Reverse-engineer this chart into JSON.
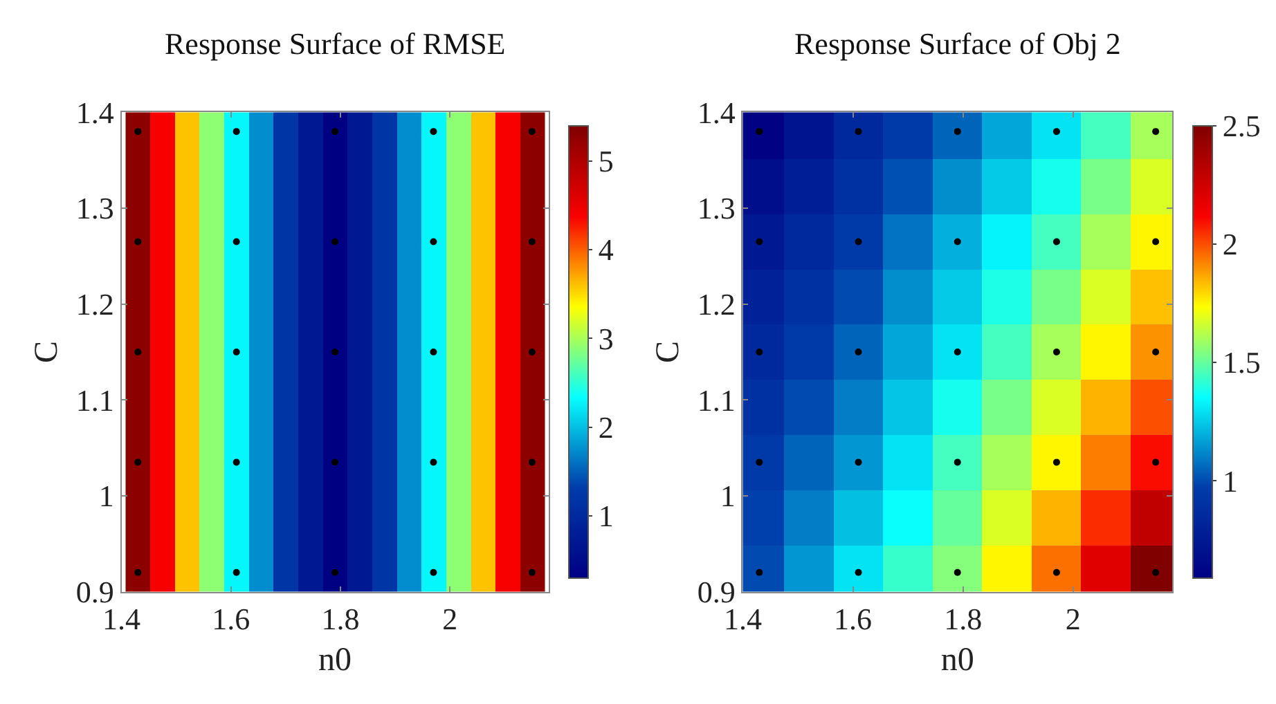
{
  "chart_data": [
    {
      "type": "heatmap",
      "title": "Response Surface of RMSE",
      "xlabel": "n0",
      "ylabel": "C",
      "clabel": null,
      "x": [
        1.43,
        1.475,
        1.52,
        1.565,
        1.61,
        1.655,
        1.7,
        1.745,
        1.79,
        1.835,
        1.88,
        1.925,
        1.97,
        2.015,
        2.06,
        2.105,
        2.15
      ],
      "y": [
        1.38,
        1.3225,
        1.265,
        1.2075,
        1.15,
        1.0925,
        1.035,
        0.9775,
        0.92
      ],
      "cells": [
        [
          5.3,
          4.4,
          3.6,
          2.9,
          2.3,
          1.75,
          1.2,
          0.7,
          0.3,
          0.7,
          1.2,
          1.75,
          2.3,
          2.9,
          3.6,
          4.4,
          5.3
        ],
        [
          5.3,
          4.4,
          3.6,
          2.9,
          2.3,
          1.75,
          1.2,
          0.7,
          0.3,
          0.7,
          1.2,
          1.75,
          2.3,
          2.9,
          3.6,
          4.4,
          5.3
        ],
        [
          5.3,
          4.4,
          3.6,
          2.9,
          2.3,
          1.75,
          1.2,
          0.7,
          0.3,
          0.7,
          1.2,
          1.75,
          2.3,
          2.9,
          3.6,
          4.4,
          5.3
        ],
        [
          5.3,
          4.4,
          3.6,
          2.9,
          2.3,
          1.75,
          1.2,
          0.7,
          0.3,
          0.7,
          1.2,
          1.75,
          2.3,
          2.9,
          3.6,
          4.4,
          5.3
        ],
        [
          5.3,
          4.4,
          3.6,
          2.9,
          2.3,
          1.75,
          1.2,
          0.7,
          0.3,
          0.7,
          1.2,
          1.75,
          2.3,
          2.9,
          3.6,
          4.4,
          5.3
        ],
        [
          5.3,
          4.4,
          3.6,
          2.9,
          2.3,
          1.75,
          1.2,
          0.7,
          0.3,
          0.7,
          1.2,
          1.75,
          2.3,
          2.9,
          3.6,
          4.4,
          5.3
        ],
        [
          5.3,
          4.4,
          3.6,
          2.9,
          2.3,
          1.75,
          1.2,
          0.7,
          0.3,
          0.7,
          1.2,
          1.75,
          2.3,
          2.9,
          3.6,
          4.4,
          5.3
        ],
        [
          5.3,
          4.4,
          3.6,
          2.9,
          2.3,
          1.75,
          1.2,
          0.7,
          0.3,
          0.7,
          1.2,
          1.75,
          2.3,
          2.9,
          3.6,
          4.4,
          5.3
        ],
        [
          5.3,
          4.4,
          3.6,
          2.9,
          2.3,
          1.75,
          1.2,
          0.7,
          0.3,
          0.7,
          1.2,
          1.75,
          2.3,
          2.9,
          3.6,
          4.4,
          5.3
        ]
      ],
      "clim": [
        0.3,
        5.4
      ],
      "cticks": [
        1,
        2,
        3,
        4,
        5
      ],
      "xlim": [
        1.4,
        2.18
      ],
      "xticks": [
        1.4,
        1.6,
        1.8,
        2
      ],
      "ylim": [
        0.9,
        1.4
      ],
      "yticks": [
        0.9,
        1,
        1.1,
        1.2,
        1.3,
        1.4
      ],
      "series": [
        {
          "type": "scatter",
          "color": "#000000",
          "x": [
            1.43,
            1.61,
            1.79,
            1.97,
            2.15,
            1.43,
            1.61,
            1.79,
            1.97,
            2.15,
            1.43,
            1.61,
            1.79,
            1.97,
            2.15,
            1.43,
            1.61,
            1.79,
            1.97,
            2.15,
            1.43,
            1.61,
            1.79,
            1.97,
            2.15
          ],
          "values": [
            1.38,
            1.38,
            1.38,
            1.38,
            1.38,
            1.265,
            1.265,
            1.265,
            1.265,
            1.265,
            1.15,
            1.15,
            1.15,
            1.15,
            1.15,
            1.035,
            1.035,
            1.035,
            1.035,
            1.035,
            0.92,
            0.92,
            0.92,
            0.92,
            0.92
          ]
        }
      ],
      "marker": "circle"
    },
    {
      "type": "heatmap",
      "title": "Response Surface of Obj 2",
      "xlabel": "n0",
      "ylabel": "C",
      "x": [
        1.43,
        1.52,
        1.61,
        1.7,
        1.79,
        1.88,
        1.97,
        2.06,
        2.15
      ],
      "y": [
        1.38,
        1.3225,
        1.265,
        1.2075,
        1.15,
        1.0925,
        1.035,
        0.9775,
        0.92
      ],
      "cells": [
        [
          0.6,
          0.72,
          0.85,
          0.95,
          1.05,
          1.18,
          1.3,
          1.45,
          1.6
        ],
        [
          0.68,
          0.79,
          0.9,
          1.01,
          1.13,
          1.25,
          1.38,
          1.53,
          1.68
        ],
        [
          0.75,
          0.85,
          0.95,
          1.08,
          1.2,
          1.33,
          1.45,
          1.6,
          1.75
        ],
        [
          0.8,
          0.9,
          1.0,
          1.13,
          1.25,
          1.39,
          1.53,
          1.68,
          1.83
        ],
        [
          0.85,
          0.95,
          1.05,
          1.18,
          1.3,
          1.45,
          1.6,
          1.75,
          1.9
        ],
        [
          0.9,
          1.0,
          1.1,
          1.24,
          1.38,
          1.53,
          1.68,
          1.85,
          2.0
        ],
        [
          0.95,
          1.05,
          1.15,
          1.3,
          1.45,
          1.6,
          1.75,
          1.93,
          2.1
        ],
        [
          0.98,
          1.1,
          1.23,
          1.36,
          1.5,
          1.68,
          1.85,
          2.05,
          2.3
        ],
        [
          1.0,
          1.15,
          1.3,
          1.43,
          1.55,
          1.75,
          1.95,
          2.2,
          2.5
        ]
      ],
      "clim": [
        0.59,
        2.5
      ],
      "cticks": [
        1,
        1.5,
        2,
        2.5
      ],
      "xlim": [
        1.4,
        2.18
      ],
      "xticks": [
        1.4,
        1.6,
        1.8,
        2
      ],
      "ylim": [
        0.9,
        1.4
      ],
      "yticks": [
        0.9,
        1,
        1.1,
        1.2,
        1.3,
        1.4
      ],
      "series": [
        {
          "type": "scatter",
          "color": "#000000",
          "x": [
            1.43,
            1.61,
            1.79,
            1.97,
            2.15,
            1.43,
            1.61,
            1.79,
            1.97,
            2.15,
            1.43,
            1.61,
            1.79,
            1.97,
            2.15,
            1.43,
            1.61,
            1.79,
            1.97,
            2.15,
            1.43,
            1.61,
            1.79,
            1.97,
            2.15
          ],
          "values": [
            1.38,
            1.38,
            1.38,
            1.38,
            1.38,
            1.265,
            1.265,
            1.265,
            1.265,
            1.265,
            1.15,
            1.15,
            1.15,
            1.15,
            1.15,
            1.035,
            1.035,
            1.035,
            1.035,
            1.035,
            0.92,
            0.92,
            0.92,
            0.92,
            0.92
          ]
        }
      ],
      "marker": "circle"
    }
  ]
}
